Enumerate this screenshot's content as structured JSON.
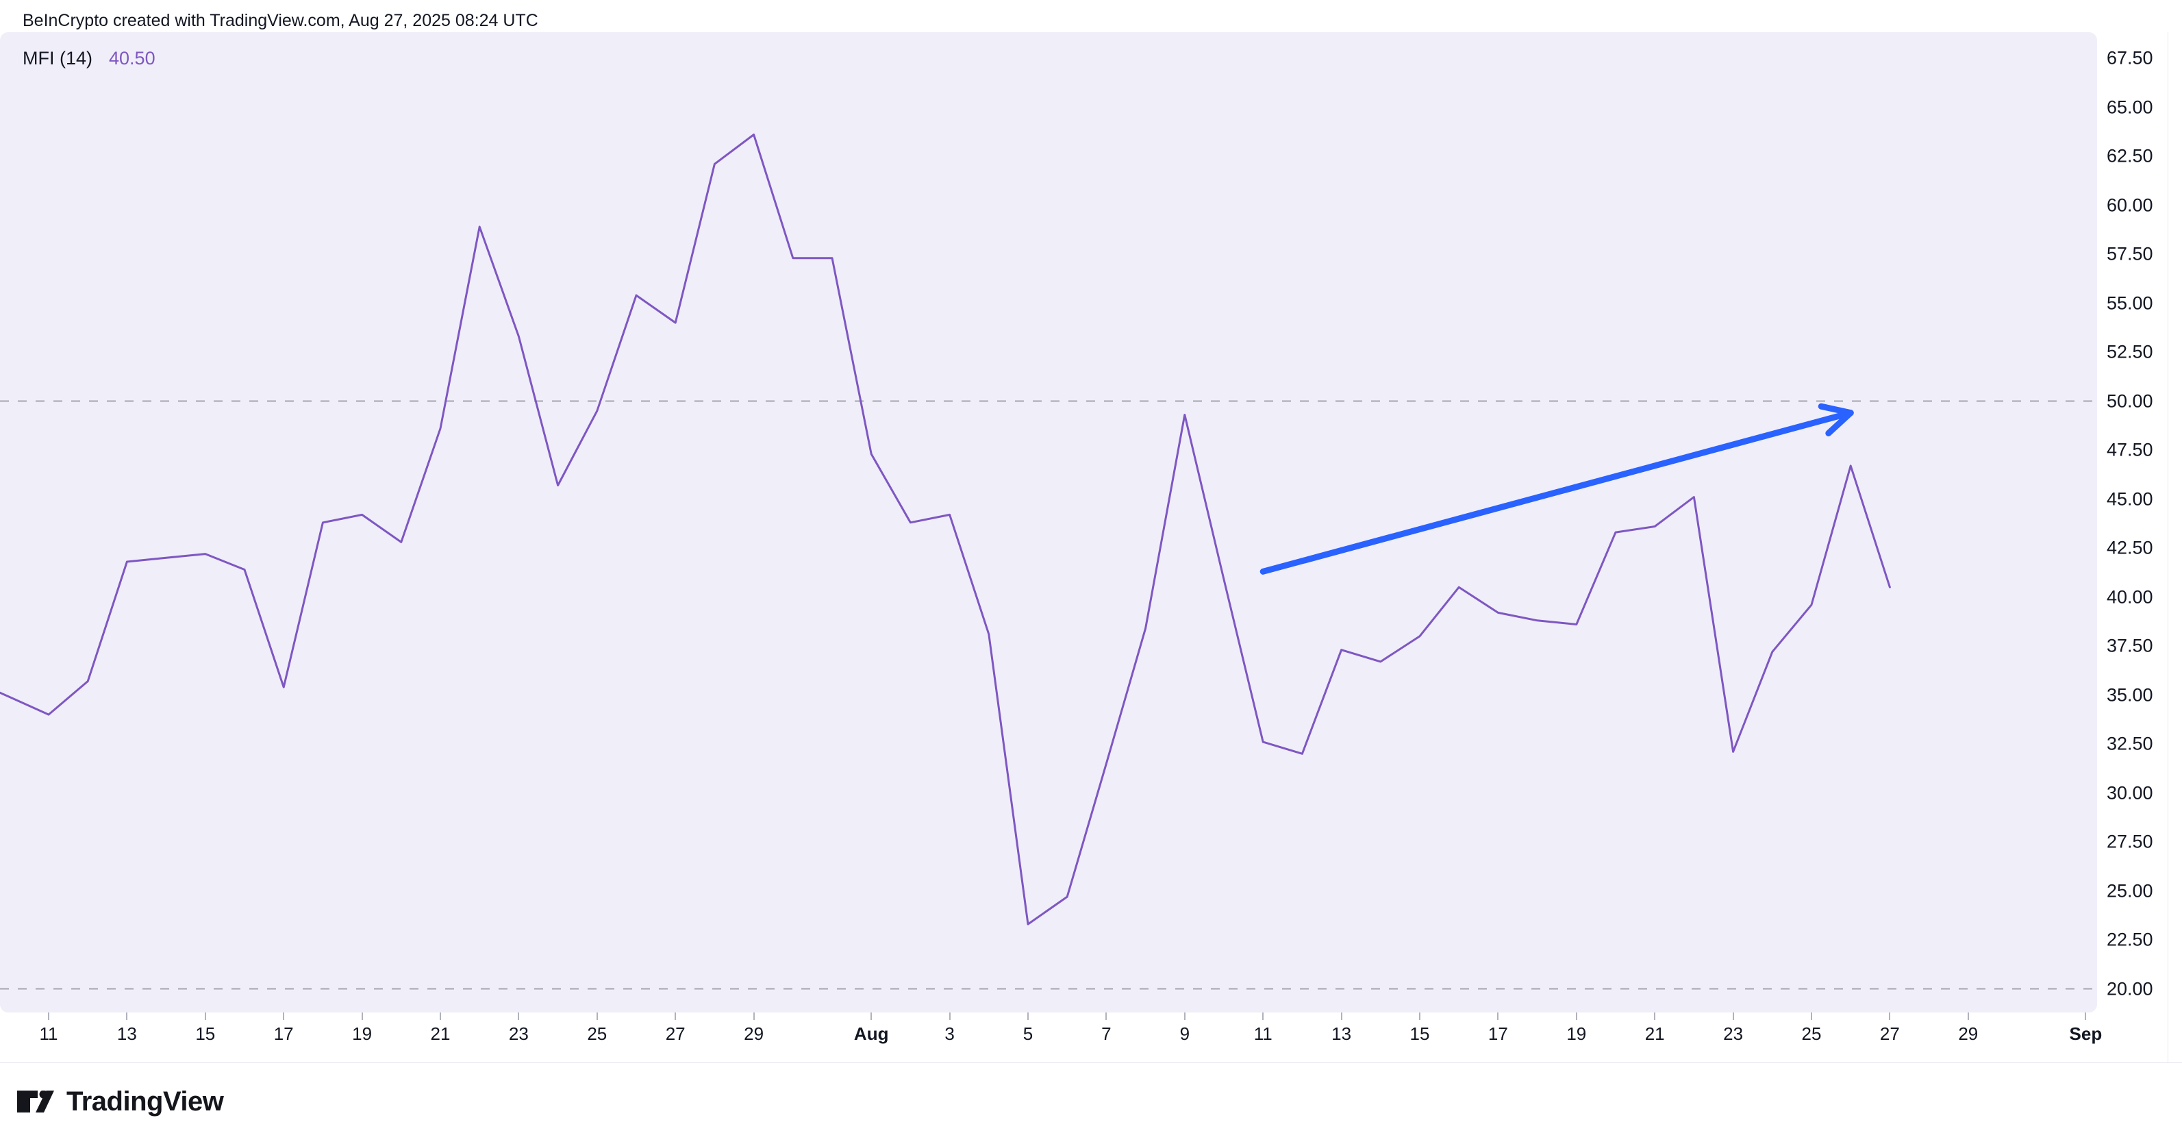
{
  "header": {
    "title": "BeInCrypto created with TradingView.com, Aug 27, 2025 08:24 UTC"
  },
  "indicator": {
    "name": "MFI (14)",
    "value": "40.50"
  },
  "footer": {
    "brand": "TradingView"
  },
  "colors": {
    "pane_background": "#f0eef9",
    "line_purple": "#7e57c2",
    "arrow_blue": "#2962ff",
    "band_dash_gray": "#a3a6af",
    "text_dark": "#131722",
    "frame_gray": "#e0e3eb",
    "tick_gray": "#b0b3bc"
  },
  "chart_data": {
    "type": "line",
    "title": "MFI (14)",
    "xlabel": "",
    "ylabel": "",
    "legend_position": "none",
    "grid": false,
    "ylim": [
      18.6,
      69.6
    ],
    "y_ticks": [
      "67.50",
      "65.00",
      "62.50",
      "60.00",
      "57.50",
      "55.00",
      "52.50",
      "50.00",
      "47.50",
      "45.00",
      "42.50",
      "40.00",
      "37.50",
      "35.00",
      "32.50",
      "30.00",
      "27.50",
      "25.00",
      "22.50",
      "20.00"
    ],
    "band_lines": [
      50.0,
      20.0
    ],
    "x": [
      "Jul 10",
      "Jul 11",
      "Jul 12",
      "Jul 13",
      "Jul 14",
      "Jul 15",
      "Jul 16",
      "Jul 17",
      "Jul 18",
      "Jul 19",
      "Jul 20",
      "Jul 21",
      "Jul 22",
      "Jul 23",
      "Jul 24",
      "Jul 25",
      "Jul 26",
      "Jul 27",
      "Jul 28",
      "Jul 29",
      "Jul 30",
      "Jul 31",
      "Aug 1",
      "Aug 2",
      "Aug 3",
      "Aug 4",
      "Aug 5",
      "Aug 6",
      "Aug 7",
      "Aug 8",
      "Aug 9",
      "Aug 10",
      "Aug 11",
      "Aug 12",
      "Aug 13",
      "Aug 14",
      "Aug 15",
      "Aug 16",
      "Aug 17",
      "Aug 18",
      "Aug 19",
      "Aug 20",
      "Aug 21",
      "Aug 22",
      "Aug 23",
      "Aug 24",
      "Aug 25",
      "Aug 26",
      "Aug 27"
    ],
    "values": [
      34.9,
      34.0,
      35.7,
      41.8,
      42.0,
      42.2,
      41.4,
      35.4,
      43.8,
      44.2,
      42.8,
      48.6,
      58.9,
      53.3,
      45.7,
      49.5,
      55.4,
      54.0,
      62.1,
      63.6,
      57.3,
      57.3,
      47.3,
      43.8,
      44.2,
      38.1,
      23.3,
      24.7,
      31.5,
      38.4,
      49.3,
      40.9,
      32.6,
      32.0,
      37.3,
      36.7,
      38.0,
      40.5,
      39.2,
      38.8,
      38.6,
      43.3,
      43.6,
      45.1,
      32.1,
      37.2,
      39.6,
      46.7,
      40.5
    ],
    "x_tick_labels": [
      {
        "label": "11",
        "offset": 0
      },
      {
        "label": "13",
        "offset": 2
      },
      {
        "label": "15",
        "offset": 4
      },
      {
        "label": "17",
        "offset": 6
      },
      {
        "label": "19",
        "offset": 8
      },
      {
        "label": "21",
        "offset": 10
      },
      {
        "label": "23",
        "offset": 12
      },
      {
        "label": "25",
        "offset": 14
      },
      {
        "label": "27",
        "offset": 16
      },
      {
        "label": "29",
        "offset": 18
      },
      {
        "label": "Aug",
        "offset": 21,
        "bold": true
      },
      {
        "label": "3",
        "offset": 23
      },
      {
        "label": "5",
        "offset": 25
      },
      {
        "label": "7",
        "offset": 27
      },
      {
        "label": "9",
        "offset": 29
      },
      {
        "label": "11",
        "offset": 31
      },
      {
        "label": "13",
        "offset": 33
      },
      {
        "label": "15",
        "offset": 35
      },
      {
        "label": "17",
        "offset": 37
      },
      {
        "label": "19",
        "offset": 39
      },
      {
        "label": "21",
        "offset": 41
      },
      {
        "label": "23",
        "offset": 43
      },
      {
        "label": "25",
        "offset": 45
      },
      {
        "label": "27",
        "offset": 47
      },
      {
        "label": "29",
        "offset": 49
      },
      {
        "label": "Sep",
        "offset": 52,
        "bold": true
      }
    ],
    "annotations": {
      "trend_arrow": {
        "from_date": "Aug 11",
        "from_value": 41.3,
        "to_date": "Aug 26",
        "to_value": 49.4
      }
    }
  }
}
